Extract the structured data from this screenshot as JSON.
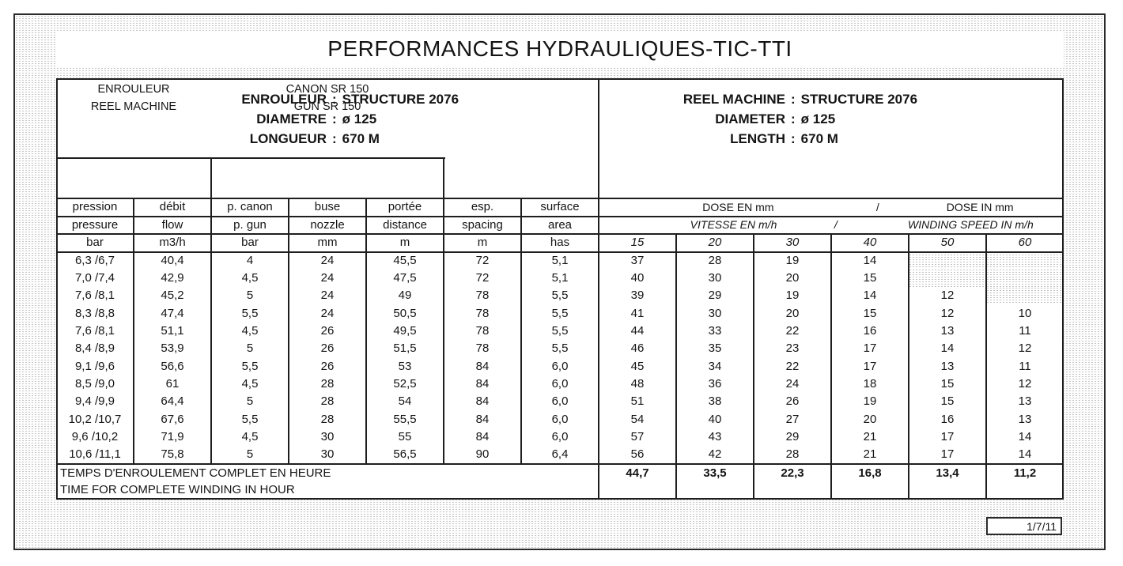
{
  "title": "PERFORMANCES HYDRAULIQUES-TIC-TTI",
  "page_number": "1/7/11",
  "header_fr": {
    "lines": [
      {
        "label": "ENROULEUR",
        "sep": ":",
        "value": "STRUCTURE 2076"
      },
      {
        "label": "DIAMETRE",
        "sep": ":",
        "value": "ø 125"
      },
      {
        "label": "LONGUEUR",
        "sep": ":",
        "value": "670 M"
      }
    ]
  },
  "header_en": {
    "lines": [
      {
        "label": "REEL MACHINE",
        "sep": ":",
        "value": "STRUCTURE 2076"
      },
      {
        "label": "DIAMETER",
        "sep": ":",
        "value": "ø 125"
      },
      {
        "label": "LENGTH",
        "sep": ":",
        "value": "670 M"
      }
    ]
  },
  "sub_header": {
    "reel_fr": "ENROULEUR",
    "reel_en": "REEL MACHINE",
    "gun_fr": "CANON SR 150",
    "gun_en": "GUN SR 150"
  },
  "columns_left": {
    "fr": [
      "pression",
      "débit",
      "p. canon",
      "buse",
      "portée",
      "esp.",
      "surface"
    ],
    "en": [
      "pressure",
      "flow",
      "p. gun",
      "nozzle",
      "distance",
      "spacing",
      "area"
    ],
    "units": [
      "bar",
      "m3/h",
      "bar",
      "mm",
      "m",
      "m",
      "has"
    ]
  },
  "dose_header": {
    "fr": "DOSE EN mm",
    "sep": "/",
    "en": "DOSE IN mm"
  },
  "speed_header": {
    "fr": "VITESSE EN m/h",
    "sep": "/",
    "en": "WINDING SPEED IN m/h"
  },
  "speed_columns": [
    "15",
    "20",
    "30",
    "40",
    "50",
    "60"
  ],
  "rows": [
    {
      "left": [
        "6,3 /6,7",
        "40,4",
        "4",
        "24",
        "45,5",
        "72",
        "5,1"
      ],
      "right": [
        "37",
        "28",
        "19",
        "14",
        null,
        null
      ]
    },
    {
      "left": [
        "7,0 /7,4",
        "42,9",
        "4,5",
        "24",
        "47,5",
        "72",
        "5,1"
      ],
      "right": [
        "40",
        "30",
        "20",
        "15",
        null,
        null
      ]
    },
    {
      "left": [
        "7,6 /8,1",
        "45,2",
        "5",
        "24",
        "49",
        "78",
        "5,5"
      ],
      "right": [
        "39",
        "29",
        "19",
        "14",
        "12",
        null
      ]
    },
    {
      "left": [
        "8,3 /8,8",
        "47,4",
        "5,5",
        "24",
        "50,5",
        "78",
        "5,5"
      ],
      "right": [
        "41",
        "30",
        "20",
        "15",
        "12",
        "10"
      ]
    },
    {
      "left": [
        "7,6 /8,1",
        "51,1",
        "4,5",
        "26",
        "49,5",
        "78",
        "5,5"
      ],
      "right": [
        "44",
        "33",
        "22",
        "16",
        "13",
        "11"
      ]
    },
    {
      "left": [
        "8,4 /8,9",
        "53,9",
        "5",
        "26",
        "51,5",
        "78",
        "5,5"
      ],
      "right": [
        "46",
        "35",
        "23",
        "17",
        "14",
        "12"
      ]
    },
    {
      "left": [
        "9,1 /9,6",
        "56,6",
        "5,5",
        "26",
        "53",
        "84",
        "6,0"
      ],
      "right": [
        "45",
        "34",
        "22",
        "17",
        "13",
        "11"
      ]
    },
    {
      "left": [
        "8,5 /9,0",
        "61",
        "4,5",
        "28",
        "52,5",
        "84",
        "6,0"
      ],
      "right": [
        "48",
        "36",
        "24",
        "18",
        "15",
        "12"
      ]
    },
    {
      "left": [
        "9,4 /9,9",
        "64,4",
        "5",
        "28",
        "54",
        "84",
        "6,0"
      ],
      "right": [
        "51",
        "38",
        "26",
        "19",
        "15",
        "13"
      ]
    },
    {
      "left": [
        "10,2 /10,7",
        "67,6",
        "5,5",
        "28",
        "55,5",
        "84",
        "6,0"
      ],
      "right": [
        "54",
        "40",
        "27",
        "20",
        "16",
        "13"
      ]
    },
    {
      "left": [
        "9,6 /10,2",
        "71,9",
        "4,5",
        "30",
        "55",
        "84",
        "6,0"
      ],
      "right": [
        "57",
        "43",
        "29",
        "21",
        "17",
        "14"
      ]
    },
    {
      "left": [
        "10,6 /11,1",
        "75,8",
        "5",
        "30",
        "56,5",
        "90",
        "6,4"
      ],
      "right": [
        "56",
        "42",
        "28",
        "21",
        "17",
        "14"
      ]
    }
  ],
  "footer": {
    "label_fr": "TEMPS D'ENROULEMENT COMPLET EN HEURE",
    "label_en": "TIME FOR COMPLETE WINDING IN HOUR",
    "values": [
      "44,7",
      "33,5",
      "22,3",
      "16,8",
      "13,4",
      "11,2"
    ]
  }
}
